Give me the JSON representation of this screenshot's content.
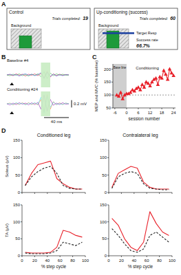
{
  "panel_a": {
    "panel": "A",
    "boxes": [
      {
        "title": "Control",
        "trials_label": "Trials completed:",
        "trials": 19,
        "background_label": "Background"
      },
      {
        "title": "Up-conditioning (success)",
        "trials_label": "Trials completed:",
        "trials": 60,
        "background_label": "Background",
        "target_label": "Target Resp",
        "success_label": "Success rate",
        "success_rate": "66.7%"
      }
    ]
  },
  "chart_data": [
    {
      "panel": "B",
      "type": "line",
      "title": "Baseline #4",
      "tick_labels": false,
      "x": [
        0,
        5,
        10,
        15,
        20,
        25,
        30,
        35,
        40,
        45,
        50,
        55,
        60,
        65,
        70,
        75,
        80,
        85,
        90,
        95,
        100
      ],
      "xlim": [
        0,
        100
      ],
      "ylim": [
        -0.3,
        0.3
      ],
      "stimulus": 8,
      "window": [
        55,
        70
      ],
      "series": [
        {
          "color": "#e6194b",
          "values": [
            0,
            0.01,
            -0.02,
            0.03,
            -0.01,
            0.02,
            -0.03,
            0.02,
            -0.01,
            0.03,
            -0.02,
            0.04,
            -0.08,
            0.1,
            -0.06,
            0.03,
            -0.02,
            0.02,
            -0.01,
            0.01,
            0
          ]
        },
        {
          "color": "#3cb44b",
          "values": [
            0,
            -0.02,
            0.02,
            -0.01,
            0.03,
            -0.02,
            0.01,
            -0.03,
            0.02,
            -0.01,
            0.03,
            -0.05,
            0.09,
            -0.1,
            0.05,
            -0.02,
            0.03,
            -0.01,
            0.02,
            -0.01,
            0
          ]
        },
        {
          "color": "#4363d8",
          "values": [
            0,
            0.02,
            -0.01,
            0.01,
            -0.03,
            0.01,
            0.03,
            -0.01,
            0.02,
            -0.02,
            0.01,
            0.06,
            -0.1,
            0.07,
            -0.04,
            0.02,
            -0.03,
            0.01,
            -0.02,
            0.01,
            0
          ]
        }
      ]
    },
    {
      "type": "line",
      "title": "Conditioning #24",
      "tick_labels": false,
      "x": [
        0,
        5,
        10,
        15,
        20,
        25,
        30,
        35,
        40,
        45,
        50,
        55,
        60,
        65,
        70,
        75,
        80,
        85,
        90,
        95,
        100
      ],
      "xlim": [
        0,
        100
      ],
      "ylim": [
        -0.3,
        0.3
      ],
      "stimulus": 8,
      "window": [
        55,
        70
      ],
      "scale_bar": {
        "x": 40,
        "x_label": "40 ms",
        "y": 0.2,
        "y_label": "0.2 mV"
      },
      "series": [
        {
          "color": "#f58231",
          "values": [
            0,
            0.02,
            -0.03,
            0.02,
            -0.02,
            0.03,
            -0.02,
            0.03,
            -0.02,
            0.02,
            -0.03,
            0.12,
            -0.22,
            0.25,
            -0.15,
            0.06,
            -0.03,
            0.03,
            -0.02,
            0.02,
            0
          ]
        },
        {
          "color": "#911eb4",
          "values": [
            0,
            -0.03,
            0.02,
            -0.02,
            0.03,
            -0.01,
            0.02,
            -0.03,
            0.03,
            -0.02,
            0.04,
            -0.15,
            0.24,
            -0.2,
            0.12,
            -0.04,
            0.02,
            -0.02,
            0.03,
            -0.01,
            0
          ]
        },
        {
          "color": "#42d4f4",
          "values": [
            0,
            0.01,
            -0.02,
            0.03,
            -0.01,
            0.02,
            -0.03,
            0.02,
            -0.01,
            0.03,
            -0.02,
            0.18,
            -0.25,
            0.2,
            -0.1,
            0.05,
            -0.02,
            0.01,
            -0.02,
            0.02,
            0
          ]
        }
      ]
    },
    {
      "panel": "C",
      "type": "line",
      "xlabel": "session number",
      "ylabel": "MEP and MVC (% baseline)",
      "x": [
        -5,
        -4,
        -3,
        -2,
        -1,
        0,
        1,
        2,
        3,
        4,
        5,
        6,
        7,
        8,
        9,
        10,
        11,
        12,
        13,
        14,
        15,
        16,
        17,
        18,
        19,
        20,
        21,
        22,
        23,
        24
      ],
      "xlim": [
        -7,
        25
      ],
      "xticks": [
        -6,
        0,
        6,
        12,
        18,
        24
      ],
      "ylim": [
        50,
        220
      ],
      "yticks": [
        50,
        100,
        150,
        200
      ],
      "baseline_period": [
        -7,
        0
      ],
      "reference_line": 100,
      "annotations": [
        "Base line",
        "Conditioning"
      ],
      "series": [
        {
          "color": "#e8212a",
          "marker": "triangle",
          "line_style": "solid",
          "values": [
            100,
            95,
            110,
            85,
            100,
            105,
            105,
            110,
            120,
            115,
            125,
            130,
            120,
            140,
            130,
            150,
            145,
            135,
            150,
            160,
            165,
            140,
            170,
            165,
            195,
            180,
            160,
            200,
            185,
            175
          ]
        }
      ]
    },
    {
      "panel": "D",
      "type": "line",
      "title": "Conditioned leg",
      "ylabel": "Soleus (µV)",
      "tick_labels": "y",
      "x": [
        5,
        15,
        25,
        35,
        45,
        55,
        65,
        75,
        85,
        95
      ],
      "xlim": [
        0,
        100
      ],
      "xticks": [
        0,
        20,
        40,
        60,
        80,
        100
      ],
      "ylim": [
        0,
        150
      ],
      "yticks": [
        0,
        50,
        100,
        150
      ],
      "series": [
        {
          "color": "#e8212a",
          "line_style": "solid",
          "values": [
            20,
            55,
            80,
            85,
            90,
            40,
            25,
            15,
            10,
            10
          ]
        },
        {
          "color": "#222222",
          "line_style": "dashed",
          "values": [
            20,
            45,
            60,
            70,
            75,
            55,
            20,
            12,
            10,
            10
          ]
        }
      ]
    },
    {
      "type": "line",
      "title": "Contralateral leg",
      "tick_labels": "y",
      "x": [
        5,
        15,
        25,
        35,
        45,
        55,
        65,
        75,
        85,
        95
      ],
      "xlim": [
        0,
        100
      ],
      "xticks": [
        0,
        20,
        40,
        60,
        80,
        100
      ],
      "ylim": [
        0,
        150
      ],
      "yticks": [
        0,
        50,
        100,
        150
      ],
      "series": [
        {
          "color": "#e8212a",
          "line_style": "solid",
          "values": [
            15,
            55,
            65,
            75,
            70,
            30,
            15,
            10,
            10,
            10
          ]
        },
        {
          "color": "#222222",
          "line_style": "dashed",
          "values": [
            12,
            45,
            55,
            60,
            55,
            25,
            12,
            10,
            8,
            8
          ]
        }
      ]
    },
    {
      "type": "line",
      "ylabel": "TA (µV)",
      "xlabel": "% step cycle",
      "x": [
        5,
        15,
        25,
        35,
        45,
        55,
        65,
        75,
        85,
        95
      ],
      "xlim": [
        0,
        100
      ],
      "xticks": [
        0,
        20,
        40,
        60,
        80,
        100
      ],
      "ylim": [
        0,
        150
      ],
      "yticks": [
        0,
        50,
        100,
        150
      ],
      "series": [
        {
          "color": "#e8212a",
          "line_style": "solid",
          "values": [
            10,
            8,
            8,
            8,
            10,
            25,
            75,
            70,
            60,
            55
          ]
        },
        {
          "color": "#222222",
          "line_style": "dashed",
          "values": [
            8,
            6,
            6,
            6,
            8,
            15,
            40,
            35,
            30,
            40
          ]
        }
      ]
    },
    {
      "type": "line",
      "xlabel": "% step cycle",
      "x": [
        5,
        15,
        25,
        35,
        45,
        55,
        65,
        75,
        85,
        95
      ],
      "xlim": [
        0,
        100
      ],
      "xticks": [
        0,
        20,
        40,
        60,
        80,
        100
      ],
      "ylim": [
        0,
        150
      ],
      "yticks": [
        0,
        50,
        100,
        150
      ],
      "series": [
        {
          "color": "#e8212a",
          "line_style": "solid",
          "values": [
            110,
            90,
            50,
            25,
            15,
            40,
            130,
            95,
            70,
            60
          ]
        },
        {
          "color": "#222222",
          "line_style": "dashed",
          "values": [
            80,
            60,
            35,
            15,
            10,
            20,
            60,
            70,
            55,
            40
          ]
        }
      ]
    }
  ]
}
